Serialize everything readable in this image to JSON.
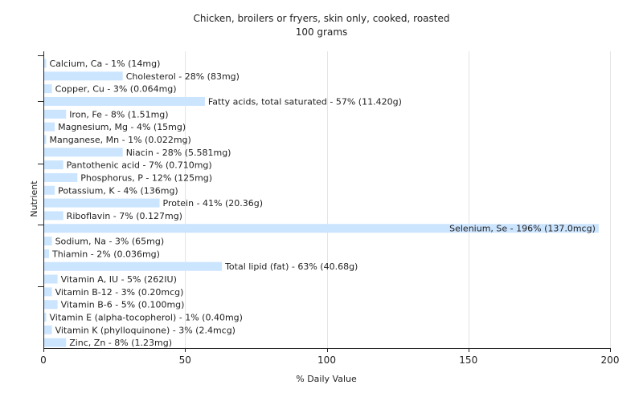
{
  "chart_data": {
    "type": "bar",
    "orientation": "horizontal",
    "title": "Chicken, broilers or fryers, skin only, cooked, roasted",
    "subtitle": "100 grams",
    "xlabel": "% Daily Value",
    "ylabel": "Nutrient",
    "xlim": [
      0,
      200
    ],
    "xticks": [
      0,
      50,
      100,
      150,
      200
    ],
    "grid": true,
    "bar_color": "#cce5ff",
    "categories": [
      "Calcium, Ca",
      "Cholesterol",
      "Copper, Cu",
      "Fatty acids, total saturated",
      "Iron, Fe",
      "Magnesium, Mg",
      "Manganese, Mn",
      "Niacin",
      "Pantothenic acid",
      "Phosphorus, P",
      "Potassium, K",
      "Protein",
      "Riboflavin",
      "Selenium, Se",
      "Sodium, Na",
      "Thiamin",
      "Total lipid (fat)",
      "Vitamin A, IU",
      "Vitamin B-12",
      "Vitamin B-6",
      "Vitamin E (alpha-tocopherol)",
      "Vitamin K (phylloquinone)",
      "Zinc, Zn"
    ],
    "values": [
      1,
      28,
      3,
      57,
      8,
      4,
      1,
      28,
      7,
      12,
      4,
      41,
      7,
      196,
      3,
      2,
      63,
      5,
      3,
      5,
      1,
      3,
      8
    ],
    "labels": [
      "Calcium, Ca - 1% (14mg)",
      "Cholesterol - 28% (83mg)",
      "Copper, Cu - 3% (0.064mg)",
      "Fatty acids, total saturated - 57% (11.420g)",
      "Iron, Fe - 8% (1.51mg)",
      "Magnesium, Mg - 4% (15mg)",
      "Manganese, Mn - 1% (0.022mg)",
      "Niacin - 28% (5.581mg)",
      "Pantothenic acid - 7% (0.710mg)",
      "Phosphorus, P - 12% (125mg)",
      "Potassium, K - 4% (136mg)",
      "Protein - 41% (20.36g)",
      "Riboflavin - 7% (0.127mg)",
      "Selenium, Se - 196% (137.0mcg)",
      "Sodium, Na - 3% (65mg)",
      "Thiamin - 2% (0.036mg)",
      "Total lipid (fat) - 63% (40.68g)",
      "Vitamin A, IU - 5% (262IU)",
      "Vitamin B-12 - 3% (0.20mcg)",
      "Vitamin B-6 - 5% (0.100mg)",
      "Vitamin E (alpha-tocopherol) - 1% (0.40mg)",
      "Vitamin K (phylloquinone) - 3% (2.4mcg)",
      "Zinc, Zn - 8% (1.23mg)"
    ]
  }
}
